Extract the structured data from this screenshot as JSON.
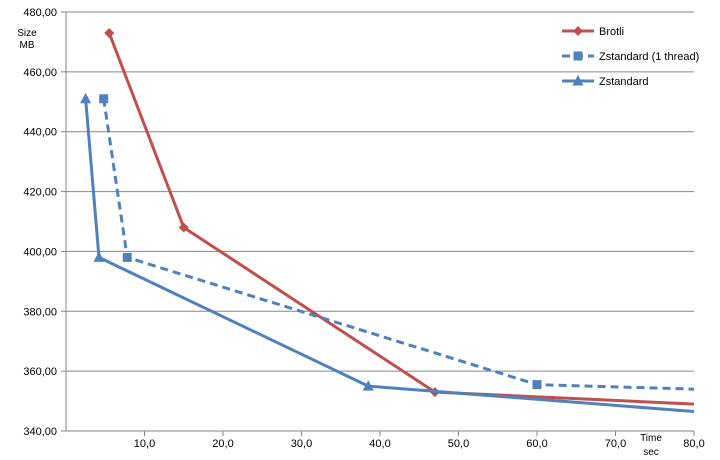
{
  "chart_data": {
    "type": "line",
    "ylabel": [
      "Size",
      "MB"
    ],
    "xlabel": [
      "Time",
      "sec"
    ],
    "xlim": [
      0,
      80
    ],
    "ylim": [
      340,
      480
    ],
    "xticks": [
      10,
      20,
      30,
      40,
      50,
      60,
      70,
      80
    ],
    "xtick_labels": [
      "10,0",
      "20,0",
      "30,0",
      "40,0",
      "50,0",
      "60,0",
      "70,0",
      "80,0"
    ],
    "yticks": [
      340,
      360,
      380,
      400,
      420,
      440,
      460,
      480
    ],
    "ytick_labels": [
      "340,00",
      "360,00",
      "380,00",
      "400,00",
      "420,00",
      "440,00",
      "460,00",
      "480,00"
    ],
    "grid": {
      "horizontal": true,
      "vertical": false
    },
    "legend_position": "top-right",
    "series": [
      {
        "name": "Brotli",
        "color": "#C0504D",
        "dash": "solid",
        "marker": "diamond",
        "points": [
          [
            5.5,
            473
          ],
          [
            15.0,
            408
          ],
          [
            47.0,
            353
          ],
          [
            80.0,
            349
          ]
        ]
      },
      {
        "name": "Zstandard (1 thread)",
        "color": "#4F81BD",
        "dash": "dashed",
        "marker": "square",
        "points": [
          [
            4.8,
            451
          ],
          [
            7.8,
            398
          ],
          [
            60.0,
            355.5
          ],
          [
            80.0,
            354
          ]
        ]
      },
      {
        "name": "Zstandard",
        "color": "#4F81BD",
        "dash": "solid",
        "marker": "triangle",
        "points": [
          [
            2.5,
            451
          ],
          [
            4.2,
            398
          ],
          [
            38.5,
            355
          ],
          [
            80.0,
            346.5
          ]
        ]
      }
    ]
  }
}
